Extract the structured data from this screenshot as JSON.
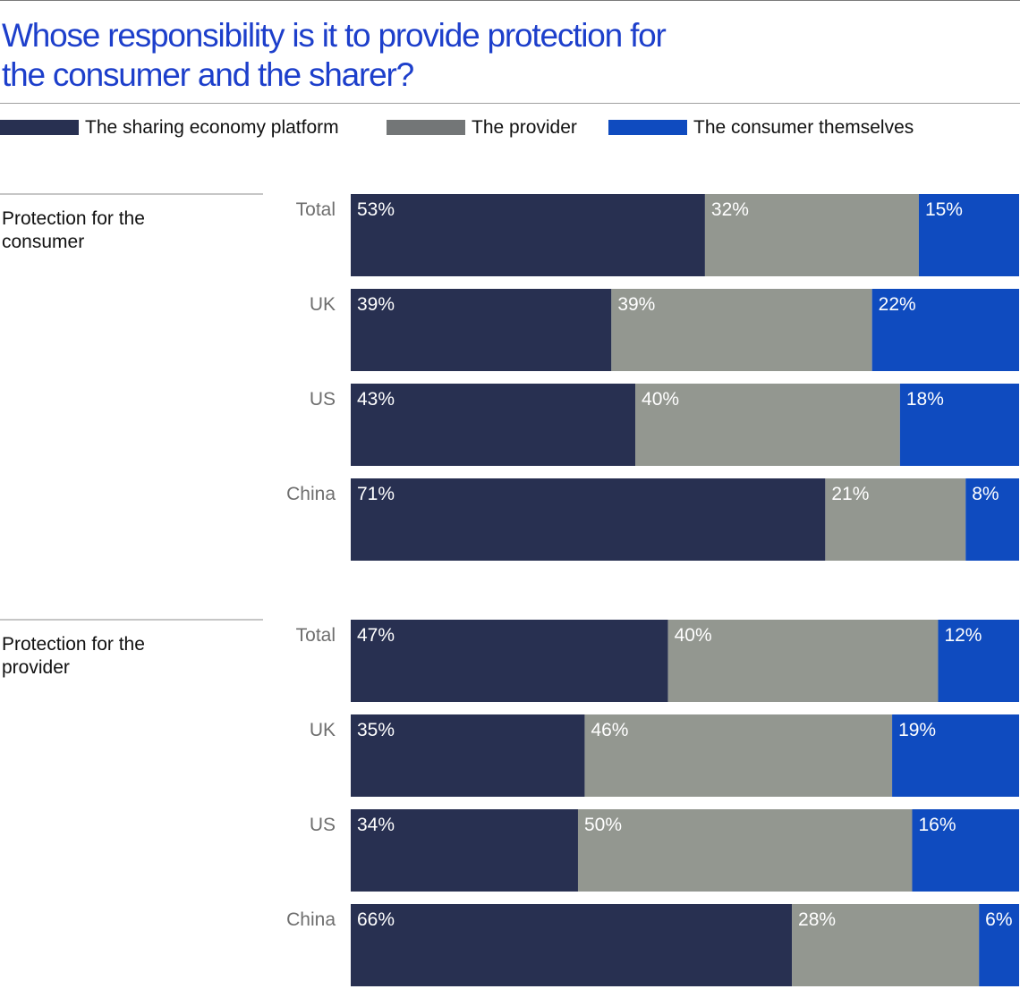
{
  "header": {
    "title_line1": "Whose responsibility is it to provide protection for",
    "title_line2": "the consumer and the sharer?"
  },
  "legend": [
    {
      "label": "The sharing economy platform",
      "color": "#283051"
    },
    {
      "label": "The provider",
      "color": "#737677"
    },
    {
      "label": "The consumer themselves",
      "color": "#0f4bbf"
    }
  ],
  "colors": {
    "platform_bar": "#283051",
    "provider_bar": "#939790",
    "consumer_bar": "#0f4bbf",
    "value_label": "#ffffff",
    "category_label": "#6e6e6e",
    "title": "#1d3fcb"
  },
  "chart_data": [
    {
      "type": "bar",
      "orientation": "horizontal",
      "stacked": true,
      "group_label": "Protection for the consumer",
      "categories": [
        "Total",
        "UK",
        "US",
        "China"
      ],
      "series": [
        {
          "name": "The sharing economy platform",
          "values": [
            53,
            39,
            43,
            71
          ]
        },
        {
          "name": "The provider",
          "values": [
            32,
            39,
            40,
            21
          ]
        },
        {
          "name": "The consumer themselves",
          "values": [
            15,
            22,
            18,
            8
          ]
        }
      ],
      "unit": "%",
      "xlim": [
        0,
        100
      ],
      "grid": false
    },
    {
      "type": "bar",
      "orientation": "horizontal",
      "stacked": true,
      "group_label": "Protection for the provider",
      "categories": [
        "Total",
        "UK",
        "US",
        "China"
      ],
      "series": [
        {
          "name": "The sharing economy platform",
          "values": [
            47,
            35,
            34,
            66
          ]
        },
        {
          "name": "The provider",
          "values": [
            40,
            46,
            50,
            28
          ]
        },
        {
          "name": "The consumer themselves",
          "values": [
            12,
            19,
            16,
            6
          ]
        }
      ],
      "unit": "%",
      "xlim": [
        0,
        100
      ],
      "grid": false
    }
  ]
}
